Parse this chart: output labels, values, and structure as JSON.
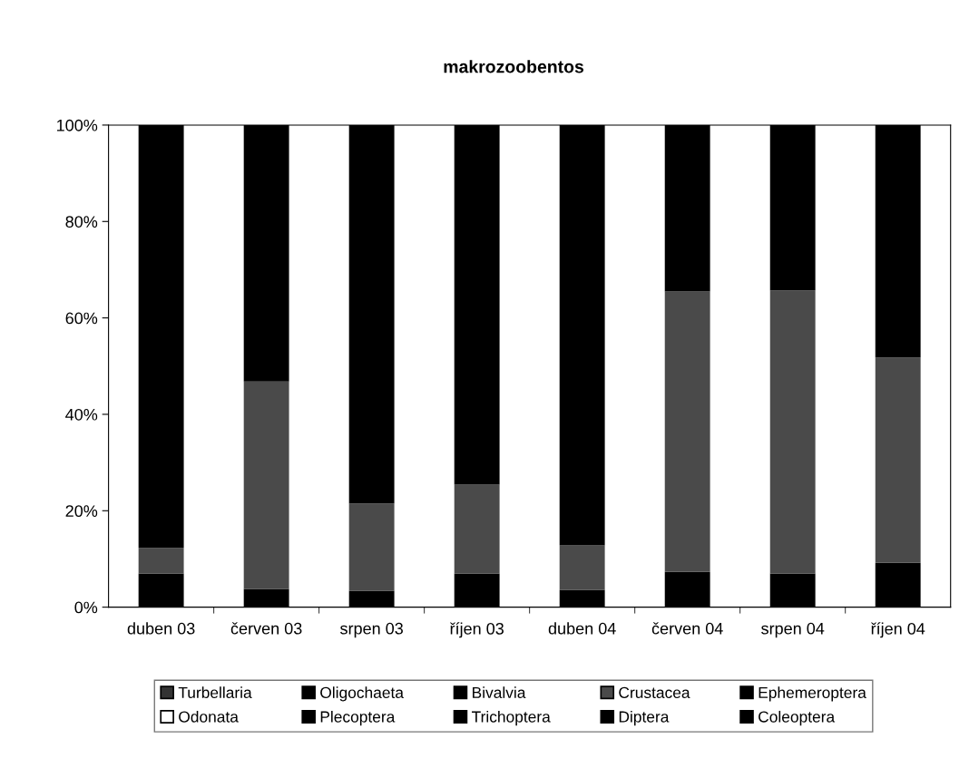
{
  "chart_data": {
    "type": "bar",
    "title": "makrozoobentos",
    "stacked": true,
    "categories": [
      "duben 03",
      "červen 03",
      "srpen 03",
      "říjen 03",
      "duben 04",
      "červen 04",
      "srpen 04",
      "říjen 04"
    ],
    "series": [
      {
        "name": "Turbellaria",
        "color": "#333333",
        "values": [
          0,
          0,
          0,
          0,
          0,
          0,
          0,
          0
        ]
      },
      {
        "name": "Oligochaeta",
        "color": "#000000",
        "values": [
          7.0,
          3.8,
          3.4,
          7.0,
          3.6,
          7.3,
          7.0,
          9.2
        ]
      },
      {
        "name": "Bivalvia",
        "color": "#000000",
        "values": [
          0,
          0,
          0,
          0,
          0,
          0,
          0,
          0
        ]
      },
      {
        "name": "Crustacea",
        "color": "#4a4a4a",
        "values": [
          5.3,
          43.0,
          18.1,
          18.4,
          9.2,
          58.2,
          58.7,
          42.6
        ]
      },
      {
        "name": "Ephemeroptera",
        "color": "#000000",
        "values": [
          0,
          0,
          0,
          0,
          0,
          0,
          0,
          0
        ]
      },
      {
        "name": "Odonata",
        "color": "#ffffff",
        "values": [
          0,
          0,
          0,
          0,
          0,
          0,
          0,
          0
        ]
      },
      {
        "name": "Plecoptera",
        "color": "#000000",
        "values": [
          0,
          0,
          0,
          0,
          0,
          0,
          0,
          0
        ]
      },
      {
        "name": "Trichoptera",
        "color": "#000000",
        "values": [
          0,
          0,
          0,
          0,
          0,
          0,
          0,
          0
        ]
      },
      {
        "name": "Diptera",
        "color": "#000000",
        "values": [
          87.7,
          53.2,
          78.5,
          74.6,
          87.2,
          34.5,
          34.3,
          48.2
        ]
      },
      {
        "name": "Coleoptera",
        "color": "#000000",
        "values": [
          0,
          0,
          0,
          0,
          0,
          0,
          0,
          0
        ]
      }
    ],
    "ylim": [
      0,
      100
    ],
    "yticks": [
      {
        "value": 0,
        "label": "0%"
      },
      {
        "value": 20,
        "label": "20%"
      },
      {
        "value": 40,
        "label": "40%"
      },
      {
        "value": 60,
        "label": "60%"
      },
      {
        "value": 80,
        "label": "80%"
      },
      {
        "value": 100,
        "label": "100%"
      }
    ],
    "grid": false,
    "legend": "bottom"
  }
}
